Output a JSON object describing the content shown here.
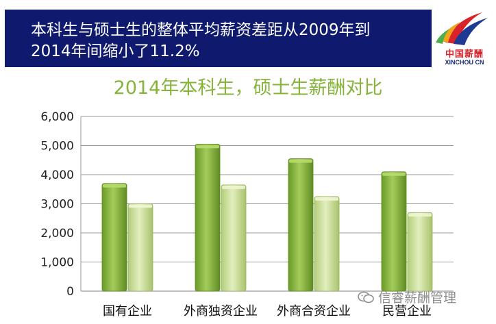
{
  "banner": {
    "line1": "本科生与硕士生的整体平均薪资差距从2009年到",
    "line2": "2014年间缩小了11.2%"
  },
  "logo": {
    "cn": "中国薪酬",
    "en": "XINCHOU CN"
  },
  "watermark": {
    "text": "信睿薪酬管理",
    "icon": "wechat-icon"
  },
  "colors": {
    "banner_bg": "#0f1a6e",
    "title": "#86b33a",
    "bar_dark": "#7fae35",
    "bar_light": "#c6dc8f"
  },
  "chart_data": {
    "type": "bar",
    "title": "2014年本科生，硕士生薪酬对比",
    "categories": [
      "国有企业",
      "外商独资企业",
      "外商合资企业",
      "民营企业"
    ],
    "series": [
      {
        "values": [
          3700,
          5050,
          4550,
          4100
        ]
      },
      {
        "values": [
          3000,
          3650,
          3250,
          2700
        ]
      }
    ],
    "yticks": [
      "0",
      "1,000",
      "2,000",
      "3,000",
      "4,000",
      "5,000",
      "6,000"
    ],
    "ylim": [
      0,
      6000
    ],
    "grid": true,
    "legend": "none"
  }
}
